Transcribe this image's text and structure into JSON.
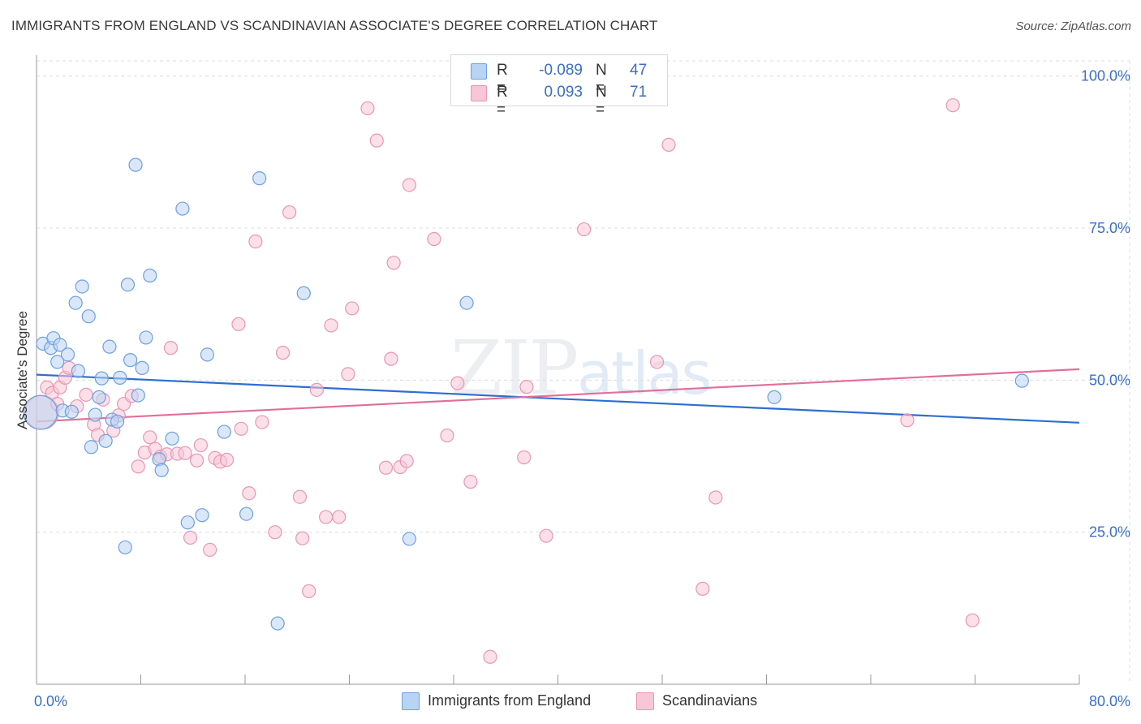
{
  "title": "IMMIGRANTS FROM ENGLAND VS SCANDINAVIAN ASSOCIATE'S DEGREE CORRELATION CHART",
  "source": "Source: ZipAtlas.com",
  "watermark": {
    "zip": "ZIP",
    "atlas": "atlas"
  },
  "stats": [
    {
      "r_label": "R =",
      "r_value": "-0.089",
      "n_label": "N =",
      "n_value": "47"
    },
    {
      "r_label": "R =",
      "r_value": "0.093",
      "n_label": "N =",
      "n_value": "71"
    }
  ],
  "legend": [
    {
      "label": "Immigrants from England"
    },
    {
      "label": "Scandinavians"
    }
  ],
  "colors": {
    "blue_fill": "#b9d3f3",
    "blue_stroke": "#6d9fe0",
    "blue_line": "#2d6fcf",
    "pink_fill": "#f7c6d7",
    "pink_stroke": "#e896b3",
    "pink_line": "#e0709a",
    "axis_text": "#3b6fc6",
    "grid": "#dcdcdc"
  },
  "chart_data": {
    "type": "scatter",
    "title": "IMMIGRANTS FROM ENGLAND VS SCANDINAVIAN ASSOCIATE'S DEGREE CORRELATION CHART",
    "xlabel": "",
    "ylabel": "Associate's Degree",
    "xlim": [
      0,
      80
    ],
    "ylim": [
      0,
      102.5
    ],
    "x_tick_labels": [
      "0.0%",
      "80.0%"
    ],
    "y_ticks": [
      {
        "value": 25,
        "label": "25.0%"
      },
      {
        "value": 50,
        "label": "50.0%"
      },
      {
        "value": 75,
        "label": "75.0%"
      },
      {
        "value": 100,
        "label": "100.0%"
      }
    ],
    "series": [
      {
        "name": "Immigrants from England",
        "color": "blue",
        "trend": {
          "x": [
            0,
            80
          ],
          "y": [
            50.9,
            43.0
          ]
        },
        "points": [
          [
            0.3,
            44.7,
            2.6
          ],
          [
            0.5,
            56.0,
            1
          ],
          [
            1.1,
            55.3,
            1
          ],
          [
            1.3,
            56.9,
            1
          ],
          [
            1.6,
            53.0,
            1
          ],
          [
            1.8,
            55.8,
            1
          ],
          [
            2.0,
            45.0,
            1
          ],
          [
            2.4,
            54.2,
            1
          ],
          [
            2.7,
            44.8,
            1
          ],
          [
            3.0,
            62.7,
            1
          ],
          [
            3.2,
            51.5,
            1
          ],
          [
            3.5,
            65.4,
            1
          ],
          [
            4.0,
            60.5,
            1
          ],
          [
            4.2,
            39.0,
            1
          ],
          [
            4.5,
            44.3,
            1
          ],
          [
            4.8,
            47.2,
            1
          ],
          [
            5.0,
            50.3,
            1
          ],
          [
            5.3,
            40.0,
            1
          ],
          [
            5.6,
            55.5,
            1
          ],
          [
            5.8,
            43.5,
            1
          ],
          [
            6.2,
            43.2,
            1
          ],
          [
            6.4,
            50.4,
            1
          ],
          [
            6.8,
            22.5,
            1
          ],
          [
            7.0,
            65.7,
            1
          ],
          [
            7.2,
            53.3,
            1
          ],
          [
            7.6,
            85.4,
            1
          ],
          [
            7.8,
            47.5,
            1
          ],
          [
            8.1,
            52.0,
            1
          ],
          [
            8.4,
            57.0,
            1
          ],
          [
            8.7,
            67.2,
            1
          ],
          [
            9.4,
            37.0,
            1
          ],
          [
            9.6,
            35.2,
            1
          ],
          [
            10.4,
            40.4,
            1
          ],
          [
            11.2,
            78.2,
            1
          ],
          [
            11.6,
            26.6,
            1
          ],
          [
            12.7,
            27.8,
            1
          ],
          [
            13.1,
            54.2,
            1
          ],
          [
            14.4,
            41.5,
            1
          ],
          [
            16.1,
            28.0,
            1
          ],
          [
            17.1,
            83.2,
            1
          ],
          [
            18.5,
            10.0,
            1
          ],
          [
            20.5,
            64.3,
            1
          ],
          [
            28.6,
            23.9,
            1
          ],
          [
            33.0,
            62.7,
            1
          ],
          [
            56.6,
            47.2,
            1
          ],
          [
            75.6,
            49.9,
            1
          ]
        ]
      },
      {
        "name": "Scandinavians",
        "color": "pink",
        "trend": {
          "x": [
            0,
            80
          ],
          "y": [
            43.2,
            51.8
          ]
        },
        "points": [
          [
            0.4,
            44.7,
            2.6
          ],
          [
            0.8,
            48.8,
            1
          ],
          [
            1.2,
            47.9,
            1
          ],
          [
            1.6,
            46.1,
            1
          ],
          [
            1.8,
            48.8,
            1
          ],
          [
            2.2,
            50.4,
            1
          ],
          [
            2.5,
            52.0,
            1
          ],
          [
            3.1,
            45.7,
            1
          ],
          [
            3.8,
            47.6,
            1
          ],
          [
            4.4,
            42.7,
            1
          ],
          [
            4.7,
            41.0,
            1
          ],
          [
            5.1,
            46.8,
            1
          ],
          [
            5.9,
            41.7,
            1
          ],
          [
            6.3,
            44.2,
            1
          ],
          [
            6.7,
            46.1,
            1
          ],
          [
            7.3,
            47.4,
            1
          ],
          [
            7.8,
            35.8,
            1
          ],
          [
            8.3,
            38.1,
            1
          ],
          [
            8.7,
            40.6,
            1
          ],
          [
            9.1,
            38.7,
            1
          ],
          [
            9.5,
            37.4,
            1
          ],
          [
            10.0,
            37.8,
            1
          ],
          [
            10.3,
            55.3,
            1
          ],
          [
            10.8,
            37.9,
            1
          ],
          [
            11.4,
            38.0,
            1
          ],
          [
            11.8,
            24.1,
            1
          ],
          [
            12.3,
            36.8,
            1
          ],
          [
            12.6,
            39.3,
            1
          ],
          [
            13.3,
            22.1,
            1
          ],
          [
            13.7,
            37.2,
            1
          ],
          [
            14.1,
            36.6,
            1
          ],
          [
            14.6,
            36.9,
            1
          ],
          [
            15.5,
            59.2,
            1
          ],
          [
            15.7,
            42.0,
            1
          ],
          [
            16.3,
            31.4,
            1
          ],
          [
            16.8,
            72.8,
            1
          ],
          [
            17.3,
            43.1,
            1
          ],
          [
            18.3,
            25.0,
            1
          ],
          [
            18.9,
            54.5,
            1
          ],
          [
            19.4,
            77.6,
            1
          ],
          [
            20.2,
            30.8,
            1
          ],
          [
            20.4,
            24.0,
            1
          ],
          [
            20.9,
            15.3,
            1
          ],
          [
            21.5,
            48.4,
            1
          ],
          [
            22.2,
            27.5,
            1
          ],
          [
            22.6,
            59.0,
            1
          ],
          [
            23.2,
            27.5,
            1
          ],
          [
            23.9,
            51.0,
            1
          ],
          [
            24.2,
            61.8,
            1
          ],
          [
            25.4,
            94.7,
            1
          ],
          [
            26.1,
            89.4,
            1
          ],
          [
            26.8,
            35.6,
            1
          ],
          [
            27.2,
            53.5,
            1
          ],
          [
            27.4,
            69.3,
            1
          ],
          [
            27.9,
            35.7,
            1
          ],
          [
            28.4,
            36.7,
            1
          ],
          [
            28.6,
            82.1,
            1
          ],
          [
            30.5,
            73.2,
            1
          ],
          [
            31.5,
            40.9,
            1
          ],
          [
            32.3,
            49.5,
            1
          ],
          [
            33.3,
            33.3,
            1
          ],
          [
            34.8,
            4.5,
            1
          ],
          [
            37.4,
            37.3,
            1
          ],
          [
            37.6,
            48.9,
            1
          ],
          [
            39.1,
            24.4,
            1
          ],
          [
            42.0,
            74.8,
            1
          ],
          [
            47.6,
            53.0,
            1
          ],
          [
            48.5,
            88.7,
            1
          ],
          [
            51.1,
            15.7,
            1
          ],
          [
            52.1,
            30.7,
            1
          ],
          [
            66.8,
            43.4,
            1
          ],
          [
            70.3,
            95.2,
            1
          ],
          [
            71.8,
            10.5,
            1
          ]
        ]
      }
    ]
  }
}
